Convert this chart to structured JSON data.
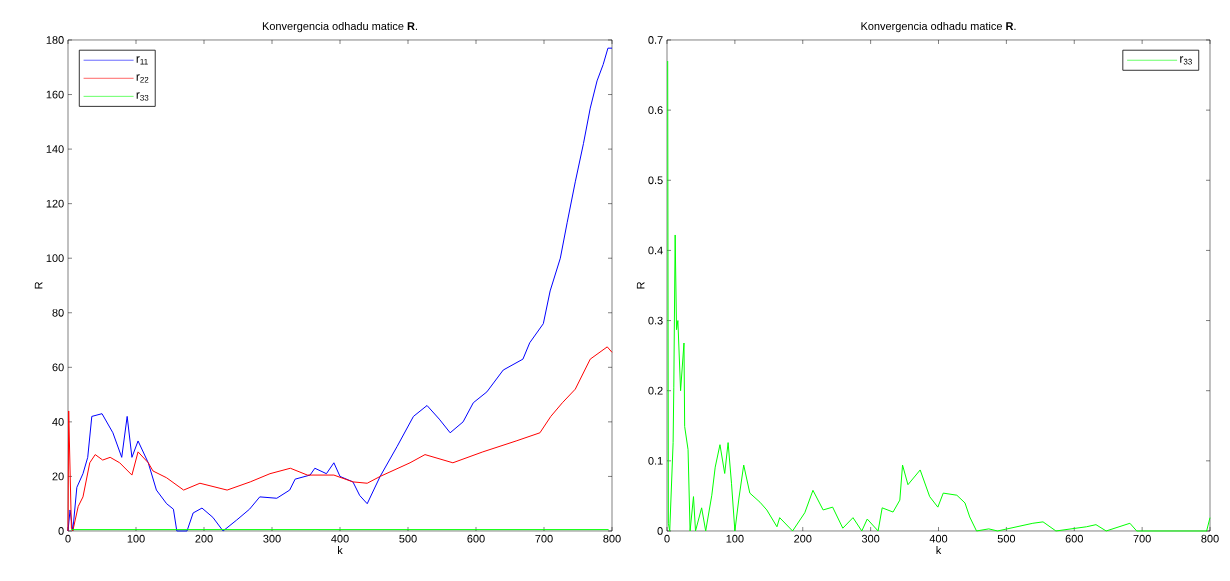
{
  "chart_data": [
    {
      "type": "line",
      "title": "Konvergencia odhadu matice **R**.",
      "xlabel": "k",
      "ylabel": "R",
      "xlim": [
        0,
        800
      ],
      "ylim": [
        0,
        180
      ],
      "xticks": [
        0,
        100,
        200,
        300,
        400,
        500,
        600,
        700,
        800
      ],
      "yticks": [
        0,
        20,
        40,
        60,
        80,
        100,
        120,
        140,
        160,
        180
      ],
      "legend": "top left",
      "grid": false,
      "marker": "none",
      "line_style": "solid",
      "series": [
        {
          "name": "r$_{11}$",
          "color": "#0000ff",
          "x": [
            0,
            3,
            7,
            13,
            22,
            29,
            35,
            50,
            66,
            79,
            87,
            94,
            103,
            118,
            130,
            145,
            155,
            160,
            175,
            184,
            197,
            213,
            228,
            248,
            267,
            282,
            307,
            326,
            334,
            356,
            363,
            380,
            391,
            400,
            419,
            429,
            440,
            459,
            484,
            508,
            528,
            546,
            562,
            581,
            596,
            616,
            640,
            669,
            679,
            699,
            709,
            724,
            734,
            746,
            758,
            768,
            778,
            787,
            794,
            800
          ],
          "values": [
            0,
            7.7,
            0,
            16,
            21,
            27,
            42,
            43,
            36,
            27,
            42,
            27,
            33,
            25,
            15,
            10,
            8,
            0,
            0,
            6.6,
            8.4,
            5,
            0,
            4,
            8,
            12.5,
            12,
            15,
            19,
            20.5,
            23,
            21,
            25,
            20,
            18,
            13,
            10,
            20,
            31,
            42,
            46,
            41,
            36,
            40,
            47,
            51,
            59,
            63,
            69,
            76,
            88,
            100,
            113,
            128,
            142,
            155,
            165,
            171,
            177,
            177
          ]
        },
        {
          "name": "r$_{22}$",
          "color": "#ff0000",
          "x": [
            0,
            1,
            5,
            7,
            15,
            22,
            32,
            40,
            51,
            62,
            76,
            94,
            103,
            118,
            125,
            145,
            170,
            194,
            234,
            268,
            297,
            327,
            352,
            391,
            419,
            440,
            459,
            503,
            525,
            566,
            610,
            659,
            694,
            710,
            727,
            746,
            768,
            793,
            800
          ],
          "values": [
            0,
            44,
            1,
            0,
            9,
            12.5,
            25,
            28,
            26,
            27,
            25,
            20.5,
            29,
            25,
            22,
            19.5,
            15,
            17.5,
            15,
            18,
            21,
            23,
            20.5,
            20.5,
            18,
            17.5,
            20,
            25,
            28,
            25,
            29,
            33,
            36,
            42,
            47,
            52,
            63,
            67.5,
            65.5
          ]
        },
        {
          "name": "r$_{33}$",
          "color": "#00ff00",
          "x": [
            5,
            400,
            795
          ],
          "values": [
            0.5,
            0.5,
            0.5
          ]
        }
      ]
    },
    {
      "type": "line",
      "title": "Konvergencia odhadu matice **R**.",
      "xlabel": "k",
      "ylabel": "R",
      "xlim": [
        0,
        800
      ],
      "ylim": [
        0,
        0.7
      ],
      "xticks": [
        0,
        100,
        200,
        300,
        400,
        500,
        600,
        700,
        800
      ],
      "yticks": [
        0,
        0.1,
        0.2,
        0.3,
        0.4,
        0.5,
        0.6,
        0.7
      ],
      "legend": "top right",
      "grid": false,
      "marker": "none",
      "line_style": "solid",
      "series": [
        {
          "name": "r$_{33}$",
          "color": "#00ff00",
          "x": [
            1,
            2,
            4,
            9,
            10,
            12,
            14,
            16,
            20,
            25,
            26,
            31,
            34,
            39,
            42,
            51,
            57,
            66,
            71,
            78,
            85,
            90,
            95,
            100,
            106,
            113,
            122,
            137,
            147,
            162,
            166,
            185,
            203,
            215,
            230,
            244,
            259,
            274,
            287,
            295,
            311,
            317,
            333,
            343,
            347,
            355,
            373,
            387,
            399,
            407,
            427,
            439,
            446,
            456,
            474,
            487,
            539,
            554,
            573,
            618,
            632,
            647,
            682,
            692,
            795,
            800
          ],
          "values": [
            0.67,
            0.011,
            0,
            0.126,
            0.205,
            0.422,
            0.287,
            0.3,
            0.2,
            0.268,
            0.149,
            0.116,
            0,
            0.049,
            0,
            0.033,
            0,
            0.051,
            0.091,
            0.123,
            0.082,
            0.126,
            0.068,
            0,
            0.047,
            0.094,
            0.054,
            0.041,
            0.03,
            0.006,
            0.019,
            0,
            0.026,
            0.058,
            0.03,
            0.034,
            0.004,
            0.019,
            0,
            0.017,
            0,
            0.033,
            0.027,
            0.044,
            0.094,
            0.066,
            0.087,
            0.049,
            0.034,
            0.054,
            0.051,
            0.04,
            0.02,
            0,
            0.003,
            0,
            0.011,
            0.013,
            0,
            0.006,
            0.009,
            0,
            0.011,
            0,
            0,
            0.019
          ]
        }
      ]
    }
  ]
}
